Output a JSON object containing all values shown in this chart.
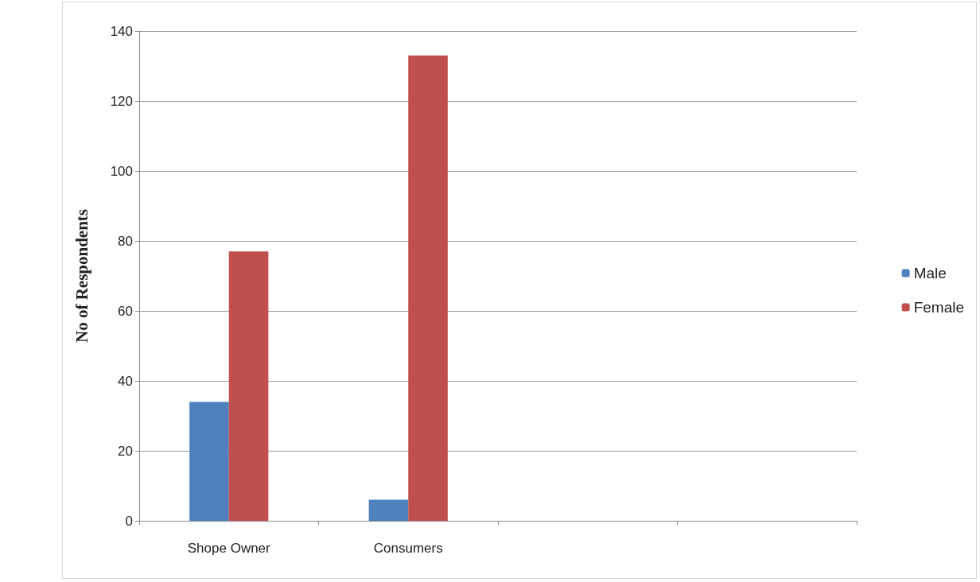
{
  "chart_data": {
    "type": "bar",
    "ylabel": "No of Respondents",
    "categories": [
      "Shope Owner",
      "Consumers",
      null,
      null
    ],
    "series": [
      {
        "name": "Male",
        "color": "#4f81bd",
        "values": [
          34,
          6,
          null,
          null
        ]
      },
      {
        "name": "Female",
        "color": "#c0504d",
        "values": [
          77,
          133,
          null,
          null
        ]
      }
    ],
    "ylim": [
      0,
      140
    ],
    "yticks": [
      0,
      20,
      40,
      60,
      80,
      100,
      120,
      140
    ],
    "grid": "y",
    "legend": "right"
  }
}
